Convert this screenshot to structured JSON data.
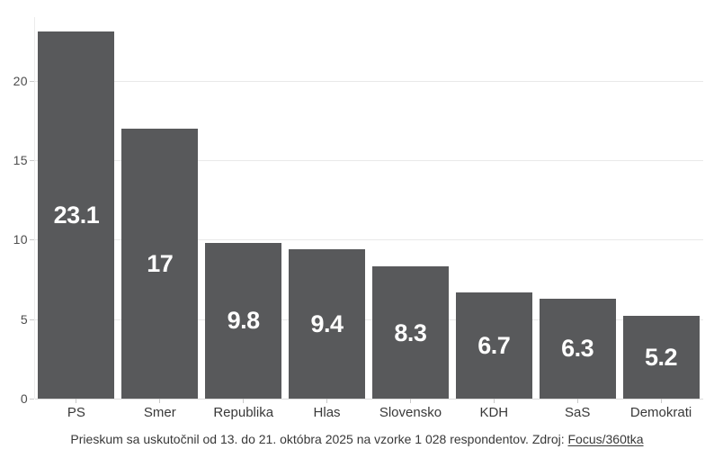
{
  "chart_data": {
    "type": "bar",
    "categories": [
      "PS",
      "Smer",
      "Republika",
      "Hlas",
      "Slovensko",
      "KDH",
      "SaS",
      "Demokrati"
    ],
    "values": [
      23.1,
      17,
      9.8,
      9.4,
      8.3,
      6.7,
      6.3,
      5.2
    ],
    "value_labels": [
      "23.1",
      "17",
      "9.8",
      "9.4",
      "8.3",
      "6.7",
      "6.3",
      "5.2"
    ],
    "title": "",
    "xlabel": "",
    "ylabel": "",
    "yticks": [
      0,
      5,
      10,
      15,
      20
    ],
    "ytick_labels": [
      "0",
      "5",
      "10",
      "15",
      "20"
    ],
    "ylim": [
      0,
      24
    ],
    "grid": "horizontal",
    "legend": "none",
    "bar_color": "#58595b",
    "value_label_color": "#ffffff"
  },
  "caption": {
    "text_before": "Prieskum sa uskutočnil od 13. do 21. októbra 2025 na vzorke 1 028 respondentov. Zdroj: ",
    "source_link": "Focus/360tka"
  }
}
